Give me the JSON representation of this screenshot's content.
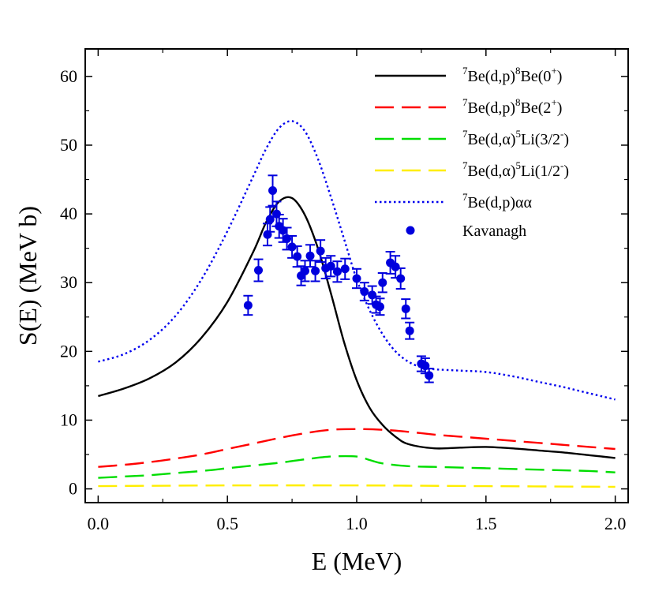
{
  "chart_data": {
    "type": "line",
    "xlabel": "E (MeV)",
    "ylabel": "S(E) (MeV b)",
    "xlim": [
      -0.05,
      2.05
    ],
    "ylim": [
      -2,
      64
    ],
    "xticks": [
      "0.0",
      "0.5",
      "1.0",
      "1.5",
      "2.0"
    ],
    "xtick_values": [
      0,
      0.5,
      1.0,
      1.5,
      2.0
    ],
    "yticks": [
      "0",
      "10",
      "20",
      "30",
      "40",
      "50",
      "60"
    ],
    "ytick_values": [
      0,
      10,
      20,
      30,
      40,
      50,
      60
    ],
    "legend_position": "top-right",
    "series": [
      {
        "name": "7Be(d,p)8Be(0+)",
        "legend": {
          "pre": "7",
          "main": "Be(d,p)",
          "sup2": "8",
          "main2": "Be(0",
          "sup3": "+",
          "end": ")"
        },
        "color": "#000000",
        "style": "solid",
        "x": [
          0.0,
          0.1,
          0.2,
          0.3,
          0.4,
          0.5,
          0.6,
          0.65,
          0.7,
          0.75,
          0.8,
          0.85,
          0.9,
          0.95,
          1.0,
          1.05,
          1.1,
          1.15,
          1.2,
          1.3,
          1.4,
          1.5,
          1.6,
          1.7,
          1.8,
          1.9,
          2.0
        ],
        "y": [
          13.5,
          14.6,
          16.1,
          18.4,
          22.0,
          27.2,
          34.5,
          38.8,
          41.8,
          42.3,
          39.8,
          35.0,
          28.5,
          21.5,
          15.8,
          11.8,
          9.3,
          7.6,
          6.5,
          5.9,
          6.0,
          6.1,
          5.9,
          5.6,
          5.3,
          4.9,
          4.5
        ]
      },
      {
        "name": "7Be(d,p)8Be(2+)",
        "legend": {
          "pre": "7",
          "main": "Be(d,p)",
          "sup2": "8",
          "main2": "Be(2",
          "sup3": "+",
          "end": ")"
        },
        "color": "#ff0000",
        "style": "dashed",
        "x": [
          0.0,
          0.1,
          0.2,
          0.3,
          0.4,
          0.5,
          0.6,
          0.7,
          0.8,
          0.9,
          1.0,
          1.1,
          1.2,
          1.3,
          1.4,
          1.5,
          1.6,
          1.7,
          1.8,
          1.9,
          2.0
        ],
        "y": [
          3.2,
          3.5,
          3.9,
          4.4,
          5.0,
          5.8,
          6.6,
          7.4,
          8.1,
          8.6,
          8.7,
          8.6,
          8.3,
          7.9,
          7.6,
          7.3,
          7.0,
          6.7,
          6.4,
          6.1,
          5.8
        ]
      },
      {
        "name": "7Be(d,α)5Li(3/2-)",
        "legend": {
          "pre": "7",
          "main": "Be(d,α)",
          "sup2": "5",
          "main2": "Li(3/2",
          "sup3": "-",
          "end": ")"
        },
        "color": "#00dd00",
        "style": "dashed",
        "x": [
          0.0,
          0.1,
          0.2,
          0.3,
          0.4,
          0.5,
          0.6,
          0.7,
          0.8,
          0.9,
          1.0,
          1.05,
          1.1,
          1.2,
          1.3,
          1.4,
          1.5,
          1.6,
          1.7,
          1.8,
          1.9,
          2.0
        ],
        "y": [
          1.6,
          1.8,
          2.0,
          2.3,
          2.6,
          3.0,
          3.4,
          3.8,
          4.3,
          4.7,
          4.7,
          4.2,
          3.7,
          3.3,
          3.2,
          3.1,
          3.0,
          2.9,
          2.8,
          2.7,
          2.6,
          2.4
        ]
      },
      {
        "name": "7Be(d,α)5Li(1/2-)",
        "legend": {
          "pre": "7",
          "main": "Be(d,α)",
          "sup2": "5",
          "main2": "Li(1/2",
          "sup3": "-",
          "end": ")"
        },
        "color": "#ffee00",
        "style": "dashed",
        "x": [
          0.0,
          0.5,
          1.0,
          1.5,
          2.0
        ],
        "y": [
          0.4,
          0.5,
          0.5,
          0.4,
          0.3
        ]
      },
      {
        "name": "7Be(d,p)αα",
        "legend": {
          "pre": "7",
          "main": "Be(d,p)αα",
          "sup2": "",
          "main2": "",
          "sup3": "",
          "end": ""
        },
        "color": "#0000ee",
        "style": "dotted",
        "x": [
          0.0,
          0.1,
          0.2,
          0.3,
          0.4,
          0.5,
          0.6,
          0.65,
          0.7,
          0.75,
          0.8,
          0.85,
          0.9,
          0.95,
          1.0,
          1.05,
          1.1,
          1.15,
          1.2,
          1.25,
          1.3,
          1.4,
          1.5,
          1.6,
          1.7,
          1.8,
          1.9,
          2.0
        ],
        "y": [
          18.5,
          19.6,
          21.7,
          25.2,
          30.5,
          37.5,
          45.5,
          49.5,
          52.5,
          53.5,
          52.0,
          48.0,
          42.5,
          36.5,
          30.5,
          26.0,
          22.5,
          20.0,
          18.5,
          17.7,
          17.4,
          17.2,
          17.0,
          16.4,
          15.6,
          14.8,
          13.9,
          13.0
        ]
      }
    ],
    "points": {
      "name": "Kavanagh",
      "color": "#0000dd",
      "x": [
        0.58,
        0.62,
        0.655,
        0.665,
        0.675,
        0.69,
        0.7,
        0.715,
        0.73,
        0.75,
        0.77,
        0.785,
        0.8,
        0.82,
        0.84,
        0.86,
        0.88,
        0.9,
        0.925,
        0.955,
        1.0,
        1.03,
        1.06,
        1.075,
        1.09,
        1.1,
        1.13,
        1.15,
        1.17,
        1.19,
        1.205,
        1.25,
        1.265,
        1.28
      ],
      "y": [
        26.7,
        31.8,
        37.0,
        39.2,
        43.4,
        40.0,
        38.2,
        37.6,
        36.4,
        35.2,
        33.8,
        31.0,
        31.7,
        33.9,
        31.7,
        34.6,
        32.1,
        32.4,
        31.6,
        32.0,
        30.6,
        28.7,
        28.2,
        26.8,
        26.5,
        30.0,
        32.9,
        32.3,
        30.6,
        26.2,
        23.0,
        18.2,
        17.9,
        16.5
      ],
      "err": [
        1.4,
        1.6,
        1.6,
        1.8,
        2.2,
        1.8,
        1.7,
        1.7,
        1.6,
        1.6,
        1.5,
        1.4,
        1.5,
        1.6,
        1.5,
        1.6,
        1.5,
        1.5,
        1.5,
        1.5,
        1.4,
        1.3,
        1.3,
        1.2,
        1.2,
        1.4,
        1.6,
        1.6,
        1.5,
        1.4,
        1.2,
        1.1,
        1.1,
        1.0
      ]
    }
  }
}
